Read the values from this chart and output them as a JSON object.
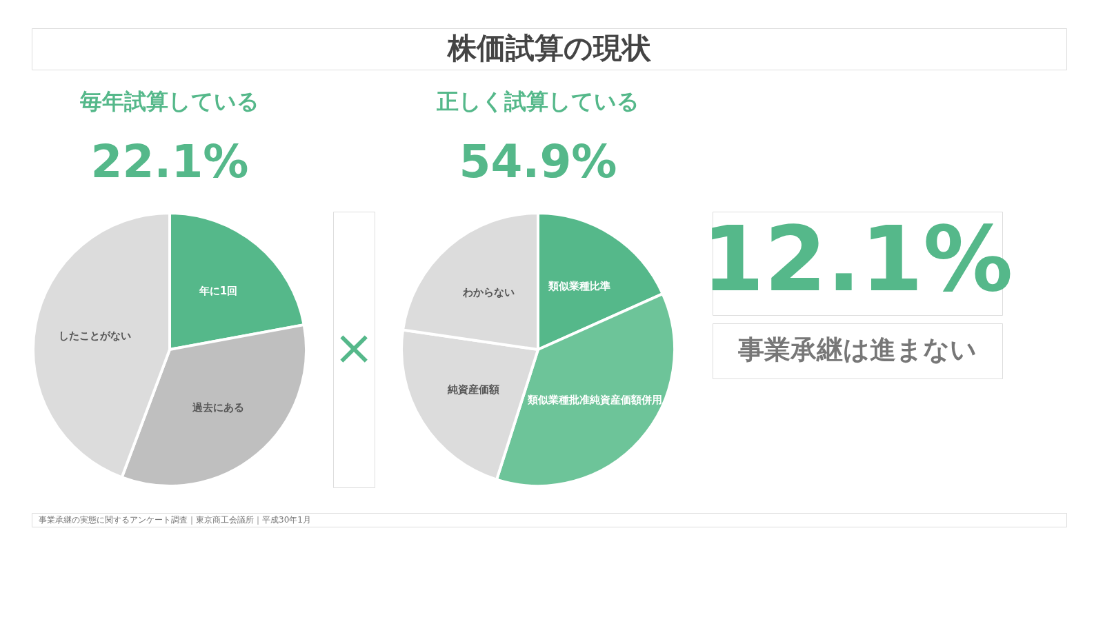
{
  "chart_data": [
    {
      "type": "pie",
      "title": "毎年試算している",
      "subtitle": "22.1%",
      "categories": [
        "年に1回",
        "過去にある",
        "したことがない"
      ],
      "values": [
        22.1,
        33.6,
        44.3
      ],
      "colors": [
        "#55b88a",
        "#bfbfbf",
        "#dcdcdc"
      ]
    },
    {
      "type": "pie",
      "title": "正しく試算している",
      "subtitle": "54.9%",
      "categories": [
        "類似業種比準",
        "類似業種批准純資産価額併用",
        "純資産価額",
        "わからない"
      ],
      "values": [
        18.3,
        36.6,
        22.4,
        22.7
      ],
      "colors": [
        "#55b88a",
        "#6dc499",
        "#dcdcdc",
        "#dcdcdc"
      ]
    },
    {
      "type": "other",
      "title": "株価試算の現状",
      "annotations": [
        "×",
        "12.1%",
        "事業承継は進まない",
        "事業承継の実態に関するアンケート調査｜東京商工会議所｜平成30年1月"
      ]
    }
  ]
}
